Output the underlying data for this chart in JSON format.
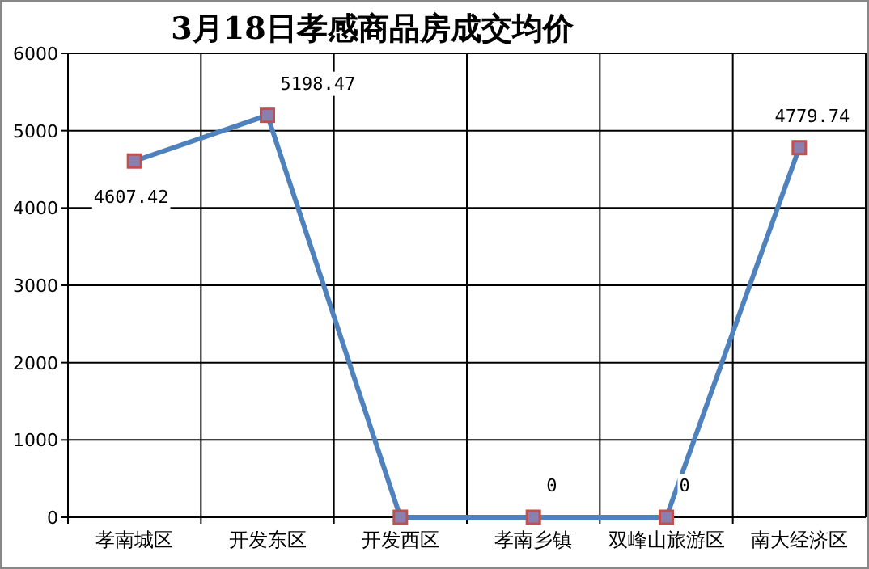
{
  "chart_data": {
    "type": "line",
    "title": "3月18日孝感商品房成交均价",
    "categories": [
      "孝南城区",
      "开发东区",
      "开发西区",
      "孝南乡镇",
      "双峰山旅游区",
      "南大经济区"
    ],
    "values": [
      4607.42,
      5198.47,
      0,
      0,
      0,
      4779.74
    ],
    "value_labels": [
      "4607.42",
      "5198.47",
      null,
      "0",
      "0",
      "4779.74"
    ],
    "color": "#4f81bd",
    "marker": "square",
    "grid": true,
    "ylim": [
      0,
      6000
    ],
    "yticks": [
      0,
      1000,
      2000,
      3000,
      4000,
      5000,
      6000
    ]
  }
}
